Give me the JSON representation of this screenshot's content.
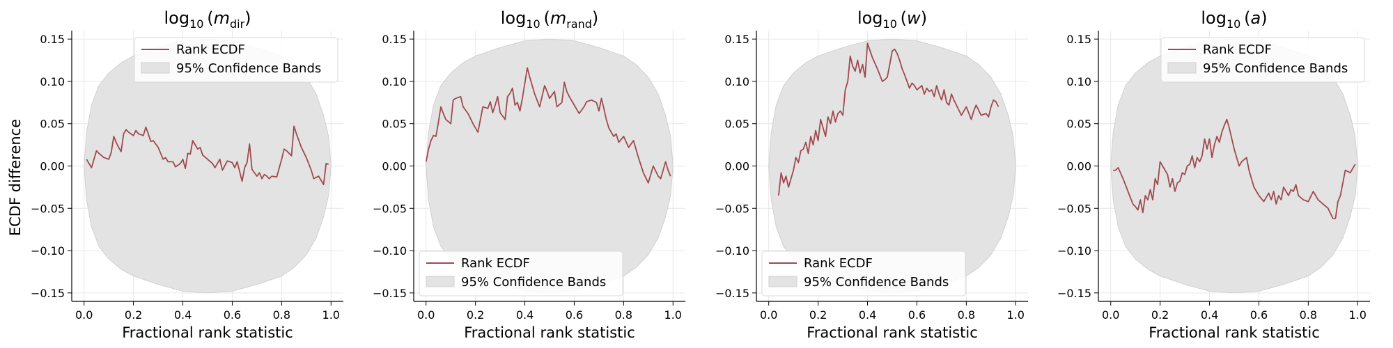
{
  "figure": {
    "ylabel": "ECDF difference",
    "xlabel": "Fractional rank statistic"
  },
  "colors": {
    "line": "#a0484f",
    "band": "#e3e3e3",
    "band_edge": "#d0d0d0",
    "grid": "#e6e6e6",
    "legend_edge": "#d9d9d9"
  },
  "chart_data": [
    {
      "type": "line",
      "title": {
        "base": "log",
        "sub": "10",
        "var": "m",
        "var_sub": "dir"
      },
      "xlabel": "Fractional rank statistic",
      "ylabel": "ECDF difference",
      "xlim": [
        -0.05,
        1.05
      ],
      "ylim": [
        -0.16,
        0.16
      ],
      "xticks": [
        "0.0",
        "0.2",
        "0.4",
        "0.6",
        "0.8",
        "1.0"
      ],
      "yticks": [
        "0.15",
        "0.10",
        "0.05",
        "0.00",
        "−0.05",
        "−0.10",
        "−0.15"
      ],
      "grid": true,
      "legend": {
        "placement": "top-right",
        "entries": [
          "Rank ECDF",
          "95% Confidence Bands"
        ]
      },
      "band": {
        "x": [
          0.0,
          0.01,
          0.03,
          0.06,
          0.1,
          0.15,
          0.2,
          0.3,
          0.4,
          0.5,
          0.6,
          0.7,
          0.8,
          0.85,
          0.9,
          0.94,
          0.97,
          0.99,
          1.0
        ],
        "upper": [
          0.0,
          0.04,
          0.072,
          0.095,
          0.11,
          0.122,
          0.13,
          0.14,
          0.148,
          0.15,
          0.148,
          0.14,
          0.13,
          0.12,
          0.105,
          0.085,
          0.06,
          0.035,
          0.0
        ],
        "lower": [
          0.0,
          -0.04,
          -0.072,
          -0.095,
          -0.11,
          -0.122,
          -0.13,
          -0.14,
          -0.148,
          -0.15,
          -0.148,
          -0.14,
          -0.13,
          -0.12,
          -0.105,
          -0.085,
          -0.06,
          -0.035,
          0.0
        ]
      },
      "series": [
        {
          "name": "Rank ECDF",
          "x": [
            0.01,
            0.02,
            0.03,
            0.05,
            0.06,
            0.08,
            0.1,
            0.11,
            0.12,
            0.13,
            0.14,
            0.15,
            0.16,
            0.17,
            0.18,
            0.2,
            0.21,
            0.22,
            0.24,
            0.25,
            0.26,
            0.27,
            0.28,
            0.3,
            0.32,
            0.33,
            0.34,
            0.36,
            0.37,
            0.39,
            0.4,
            0.41,
            0.42,
            0.43,
            0.44,
            0.46,
            0.47,
            0.48,
            0.5,
            0.52,
            0.53,
            0.55,
            0.56,
            0.58,
            0.6,
            0.61,
            0.62,
            0.64,
            0.65,
            0.66,
            0.67,
            0.68,
            0.7,
            0.71,
            0.72,
            0.73,
            0.74,
            0.75,
            0.76,
            0.78,
            0.8,
            0.81,
            0.82,
            0.84,
            0.85,
            0.86,
            0.88,
            0.9,
            0.92,
            0.93,
            0.95,
            0.97,
            0.98,
            0.99
          ],
          "y": [
            0.008,
            0.003,
            -0.002,
            0.018,
            0.015,
            0.01,
            0.008,
            0.016,
            0.035,
            0.028,
            0.022,
            0.017,
            0.038,
            0.043,
            0.04,
            0.036,
            0.042,
            0.038,
            0.036,
            0.046,
            0.038,
            0.029,
            0.03,
            0.022,
            0.008,
            0.01,
            0.005,
            0.005,
            -0.001,
            0.003,
            0.008,
            -0.003,
            0.015,
            0.014,
            0.03,
            0.02,
            0.022,
            0.013,
            0.008,
            0.003,
            -0.002,
            0.008,
            -0.005,
            0.006,
            0.004,
            -0.002,
            0.005,
            -0.018,
            -0.002,
            0.004,
            0.026,
            -0.004,
            -0.012,
            -0.008,
            -0.015,
            -0.01,
            -0.012,
            -0.015,
            -0.012,
            -0.013,
            0.008,
            0.02,
            0.018,
            0.012,
            0.047,
            0.038,
            0.022,
            0.01,
            -0.005,
            -0.015,
            -0.012,
            -0.022,
            0.003,
            0.002
          ]
        }
      ]
    },
    {
      "type": "line",
      "title": {
        "base": "log",
        "sub": "10",
        "var": "m",
        "var_sub": "rand"
      },
      "xlabel": "Fractional rank statistic",
      "xlim": [
        -0.05,
        1.05
      ],
      "ylim": [
        -0.16,
        0.16
      ],
      "xticks": [
        "0.0",
        "0.2",
        "0.4",
        "0.6",
        "0.8",
        "1.0"
      ],
      "yticks": [
        "0.15",
        "0.10",
        "0.05",
        "0.00",
        "−0.05",
        "−0.10",
        "−0.15"
      ],
      "grid": true,
      "legend": {
        "placement": "bottom-left",
        "entries": [
          "Rank ECDF",
          "95% Confidence Bands"
        ]
      },
      "band": {
        "x": [
          0.0,
          0.01,
          0.03,
          0.06,
          0.1,
          0.15,
          0.2,
          0.3,
          0.4,
          0.5,
          0.6,
          0.7,
          0.8,
          0.85,
          0.9,
          0.94,
          0.97,
          0.99,
          1.0
        ],
        "upper": [
          0.0,
          0.04,
          0.072,
          0.095,
          0.11,
          0.122,
          0.13,
          0.14,
          0.148,
          0.15,
          0.148,
          0.14,
          0.13,
          0.12,
          0.105,
          0.085,
          0.06,
          0.035,
          0.0
        ],
        "lower": [
          0.0,
          -0.04,
          -0.072,
          -0.095,
          -0.11,
          -0.122,
          -0.13,
          -0.14,
          -0.148,
          -0.15,
          -0.148,
          -0.14,
          -0.13,
          -0.12,
          -0.105,
          -0.085,
          -0.06,
          -0.035,
          0.0
        ]
      },
      "series": [
        {
          "name": "Rank ECDF",
          "x": [
            0.0,
            0.01,
            0.02,
            0.03,
            0.04,
            0.05,
            0.06,
            0.07,
            0.08,
            0.1,
            0.11,
            0.12,
            0.14,
            0.15,
            0.17,
            0.19,
            0.21,
            0.23,
            0.25,
            0.26,
            0.27,
            0.28,
            0.29,
            0.3,
            0.32,
            0.33,
            0.34,
            0.35,
            0.36,
            0.37,
            0.38,
            0.39,
            0.41,
            0.42,
            0.44,
            0.46,
            0.48,
            0.49,
            0.5,
            0.52,
            0.53,
            0.55,
            0.56,
            0.57,
            0.58,
            0.6,
            0.62,
            0.64,
            0.65,
            0.67,
            0.69,
            0.7,
            0.71,
            0.72,
            0.73,
            0.74,
            0.75,
            0.76,
            0.77,
            0.78,
            0.8,
            0.82,
            0.84,
            0.86,
            0.88,
            0.9,
            0.92,
            0.94,
            0.95,
            0.96,
            0.97,
            0.98,
            0.99
          ],
          "y": [
            0.005,
            0.02,
            0.03,
            0.036,
            0.035,
            0.052,
            0.07,
            0.062,
            0.055,
            0.05,
            0.078,
            0.08,
            0.082,
            0.07,
            0.062,
            0.05,
            0.04,
            0.07,
            0.068,
            0.076,
            0.063,
            0.072,
            0.082,
            0.063,
            0.055,
            0.082,
            0.086,
            0.092,
            0.072,
            0.075,
            0.065,
            0.08,
            0.116,
            0.105,
            0.085,
            0.07,
            0.095,
            0.088,
            0.08,
            0.088,
            0.07,
            0.075,
            0.099,
            0.088,
            0.082,
            0.072,
            0.062,
            0.07,
            0.076,
            0.078,
            0.075,
            0.065,
            0.08,
            0.068,
            0.055,
            0.045,
            0.04,
            0.035,
            0.038,
            0.028,
            0.035,
            0.022,
            0.03,
            0.01,
            -0.008,
            -0.02,
            0.0,
            -0.012,
            -0.015,
            -0.005,
            0.005,
            -0.005,
            -0.012
          ]
        }
      ]
    },
    {
      "type": "line",
      "title": {
        "base": "log",
        "sub": "10",
        "var": "w",
        "var_sub": ""
      },
      "xlabel": "Fractional rank statistic",
      "xlim": [
        -0.05,
        1.05
      ],
      "ylim": [
        -0.16,
        0.16
      ],
      "xticks": [
        "0.0",
        "0.2",
        "0.4",
        "0.6",
        "0.8",
        "1.0"
      ],
      "yticks": [
        "0.15",
        "0.10",
        "0.05",
        "0.00",
        "−0.05",
        "−0.10",
        "−0.15"
      ],
      "grid": true,
      "legend": {
        "placement": "bottom-left",
        "entries": [
          "Rank ECDF",
          "95% Confidence Bands"
        ]
      },
      "band": {
        "x": [
          0.0,
          0.01,
          0.03,
          0.06,
          0.1,
          0.15,
          0.2,
          0.3,
          0.4,
          0.5,
          0.6,
          0.7,
          0.8,
          0.85,
          0.9,
          0.94,
          0.97,
          0.99,
          1.0
        ],
        "upper": [
          0.0,
          0.04,
          0.072,
          0.095,
          0.11,
          0.122,
          0.13,
          0.14,
          0.148,
          0.15,
          0.148,
          0.14,
          0.13,
          0.12,
          0.105,
          0.085,
          0.06,
          0.035,
          0.0
        ],
        "lower": [
          0.0,
          -0.04,
          -0.072,
          -0.095,
          -0.11,
          -0.122,
          -0.13,
          -0.14,
          -0.148,
          -0.15,
          -0.148,
          -0.14,
          -0.13,
          -0.12,
          -0.105,
          -0.085,
          -0.06,
          -0.035,
          0.0
        ]
      },
      "series": [
        {
          "name": "Rank ECDF",
          "x": [
            0.04,
            0.05,
            0.06,
            0.07,
            0.08,
            0.1,
            0.11,
            0.12,
            0.13,
            0.14,
            0.15,
            0.16,
            0.17,
            0.18,
            0.19,
            0.2,
            0.21,
            0.22,
            0.23,
            0.24,
            0.25,
            0.26,
            0.27,
            0.28,
            0.29,
            0.3,
            0.31,
            0.32,
            0.33,
            0.34,
            0.35,
            0.36,
            0.37,
            0.38,
            0.39,
            0.4,
            0.42,
            0.44,
            0.46,
            0.47,
            0.48,
            0.49,
            0.5,
            0.51,
            0.52,
            0.53,
            0.54,
            0.55,
            0.56,
            0.57,
            0.58,
            0.59,
            0.6,
            0.62,
            0.63,
            0.64,
            0.65,
            0.66,
            0.67,
            0.68,
            0.69,
            0.7,
            0.71,
            0.72,
            0.73,
            0.74,
            0.75,
            0.76,
            0.78,
            0.8,
            0.82,
            0.83,
            0.84,
            0.86,
            0.88,
            0.89,
            0.9,
            0.91,
            0.92,
            0.93
          ],
          "y": [
            -0.035,
            -0.008,
            -0.02,
            -0.012,
            -0.025,
            -0.005,
            0.01,
            0.004,
            0.018,
            0.02,
            0.028,
            0.015,
            0.035,
            0.025,
            0.042,
            0.03,
            0.055,
            0.045,
            0.035,
            0.058,
            0.05,
            0.065,
            0.052,
            0.062,
            0.065,
            0.06,
            0.09,
            0.1,
            0.13,
            0.118,
            0.112,
            0.125,
            0.11,
            0.12,
            0.105,
            0.145,
            0.128,
            0.115,
            0.1,
            0.102,
            0.105,
            0.12,
            0.136,
            0.138,
            0.133,
            0.125,
            0.115,
            0.108,
            0.1,
            0.092,
            0.098,
            0.095,
            0.09,
            0.095,
            0.085,
            0.092,
            0.088,
            0.09,
            0.082,
            0.095,
            0.085,
            0.078,
            0.09,
            0.075,
            0.072,
            0.085,
            0.078,
            0.072,
            0.06,
            0.07,
            0.055,
            0.065,
            0.072,
            0.06,
            0.062,
            0.058,
            0.07,
            0.078,
            0.076,
            0.07
          ]
        }
      ]
    },
    {
      "type": "line",
      "title": {
        "base": "log",
        "sub": "10",
        "var": "a",
        "var_sub": ""
      },
      "xlabel": "Fractional rank statistic",
      "xlim": [
        -0.05,
        1.05
      ],
      "ylim": [
        -0.16,
        0.16
      ],
      "xticks": [
        "0.0",
        "0.2",
        "0.4",
        "0.6",
        "0.8",
        "1.0"
      ],
      "yticks": [
        "0.15",
        "0.10",
        "0.05",
        "0.00",
        "−0.05",
        "−0.10",
        "−0.15"
      ],
      "grid": true,
      "legend": {
        "placement": "top-right",
        "entries": [
          "Rank ECDF",
          "95% Confidence Bands"
        ]
      },
      "band": {
        "x": [
          0.0,
          0.01,
          0.03,
          0.06,
          0.1,
          0.15,
          0.2,
          0.3,
          0.4,
          0.5,
          0.6,
          0.7,
          0.8,
          0.85,
          0.9,
          0.94,
          0.97,
          0.99,
          1.0
        ],
        "upper": [
          0.0,
          0.04,
          0.072,
          0.095,
          0.11,
          0.122,
          0.13,
          0.14,
          0.148,
          0.15,
          0.148,
          0.14,
          0.13,
          0.12,
          0.105,
          0.085,
          0.06,
          0.035,
          0.0
        ],
        "lower": [
          0.0,
          -0.04,
          -0.072,
          -0.095,
          -0.11,
          -0.122,
          -0.13,
          -0.14,
          -0.148,
          -0.15,
          -0.148,
          -0.14,
          -0.13,
          -0.12,
          -0.105,
          -0.085,
          -0.06,
          -0.035,
          0.0
        ]
      },
      "series": [
        {
          "name": "Rank ECDF",
          "x": [
            0.01,
            0.02,
            0.03,
            0.05,
            0.07,
            0.09,
            0.1,
            0.11,
            0.12,
            0.13,
            0.14,
            0.15,
            0.16,
            0.17,
            0.18,
            0.19,
            0.2,
            0.21,
            0.22,
            0.23,
            0.24,
            0.25,
            0.26,
            0.27,
            0.28,
            0.29,
            0.3,
            0.31,
            0.32,
            0.33,
            0.34,
            0.35,
            0.36,
            0.37,
            0.38,
            0.39,
            0.4,
            0.41,
            0.42,
            0.43,
            0.44,
            0.45,
            0.46,
            0.47,
            0.48,
            0.5,
            0.52,
            0.53,
            0.55,
            0.56,
            0.57,
            0.58,
            0.6,
            0.62,
            0.64,
            0.65,
            0.66,
            0.67,
            0.68,
            0.69,
            0.7,
            0.71,
            0.72,
            0.73,
            0.74,
            0.75,
            0.76,
            0.78,
            0.8,
            0.82,
            0.84,
            0.86,
            0.88,
            0.9,
            0.91,
            0.92,
            0.93,
            0.95,
            0.97,
            0.99
          ],
          "y": [
            -0.005,
            -0.005,
            -0.002,
            -0.015,
            -0.03,
            -0.045,
            -0.048,
            -0.052,
            -0.04,
            -0.055,
            -0.035,
            -0.04,
            -0.028,
            -0.04,
            -0.015,
            -0.022,
            0.005,
            0.0,
            -0.005,
            -0.01,
            -0.025,
            -0.015,
            -0.03,
            -0.02,
            -0.018,
            -0.008,
            -0.01,
            0.0,
            0.002,
            0.012,
            -0.002,
            0.01,
            0.005,
            0.012,
            0.032,
            0.02,
            0.032,
            0.01,
            0.025,
            0.035,
            0.028,
            0.04,
            0.048,
            0.055,
            0.045,
            0.02,
            0.0,
            0.005,
            0.01,
            -0.005,
            -0.015,
            -0.025,
            -0.035,
            -0.042,
            -0.032,
            -0.04,
            -0.03,
            -0.045,
            -0.035,
            -0.04,
            -0.025,
            -0.03,
            -0.035,
            -0.028,
            -0.03,
            -0.022,
            -0.035,
            -0.04,
            -0.042,
            -0.03,
            -0.04,
            -0.045,
            -0.05,
            -0.062,
            -0.062,
            -0.042,
            -0.035,
            -0.005,
            -0.008,
            0.002
          ]
        }
      ]
    }
  ]
}
